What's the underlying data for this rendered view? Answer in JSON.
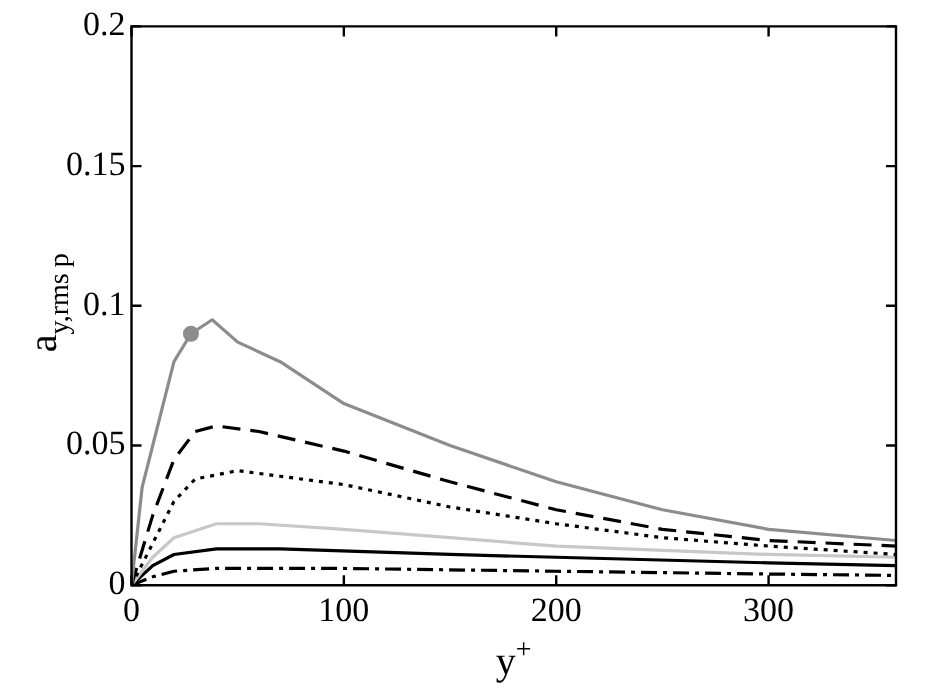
{
  "chart_data": {
    "type": "line",
    "xlabel": "y$^{+}$",
    "ylabel": "a$_{y,rms}$$_{p}$",
    "xlim": [
      0,
      360
    ],
    "xticks": [
      0,
      100,
      200,
      300
    ],
    "ylim": [
      0,
      0.2
    ],
    "yticks": [
      0,
      0.05,
      0.1,
      0.15,
      0.2
    ],
    "grid": false,
    "legend": false,
    "series": [
      {
        "color": "#8c8c8c",
        "line_style": "solid",
        "x": [
          0,
          5,
          10,
          20,
          28,
          38,
          50,
          70,
          100,
          150,
          200,
          250,
          300,
          360
        ],
        "values": [
          0,
          0.035,
          0.05,
          0.08,
          0.09,
          0.095,
          0.087,
          0.08,
          0.065,
          0.05,
          0.037,
          0.027,
          0.02,
          0.016
        ]
      },
      {
        "color": "#000000",
        "line_style": "dashed",
        "x": [
          0,
          10,
          20,
          30,
          40,
          60,
          100,
          150,
          200,
          250,
          300,
          360
        ],
        "values": [
          0,
          0.025,
          0.045,
          0.055,
          0.057,
          0.055,
          0.048,
          0.037,
          0.027,
          0.02,
          0.016,
          0.014
        ]
      },
      {
        "color": "#000000",
        "line_style": "dotted",
        "x": [
          0,
          10,
          20,
          30,
          50,
          70,
          100,
          150,
          200,
          250,
          300,
          360
        ],
        "values": [
          0,
          0.015,
          0.03,
          0.038,
          0.041,
          0.039,
          0.036,
          0.028,
          0.022,
          0.017,
          0.014,
          0.011
        ]
      },
      {
        "color": "#c8c8c8",
        "line_style": "solid",
        "x": [
          0,
          10,
          20,
          40,
          60,
          100,
          150,
          200,
          300,
          360
        ],
        "values": [
          0,
          0.01,
          0.017,
          0.022,
          0.022,
          0.02,
          0.017,
          0.014,
          0.011,
          0.01
        ]
      },
      {
        "color": "#000000",
        "line_style": "solid",
        "x": [
          0,
          10,
          20,
          40,
          70,
          150,
          200,
          300,
          360
        ],
        "values": [
          0,
          0.007,
          0.011,
          0.013,
          0.013,
          0.011,
          0.01,
          0.008,
          0.007
        ]
      },
      {
        "color": "#000000",
        "line_style": "dashdot",
        "x": [
          0,
          10,
          20,
          40,
          100,
          200,
          300,
          360
        ],
        "values": [
          0,
          0.003,
          0.005,
          0.006,
          0.006,
          0.005,
          0.004,
          0.0035
        ]
      },
      {
        "type": "scatter",
        "marker": "circle",
        "color": "#8c8c8c",
        "x": [
          28
        ],
        "values": [
          0.09
        ]
      }
    ]
  }
}
